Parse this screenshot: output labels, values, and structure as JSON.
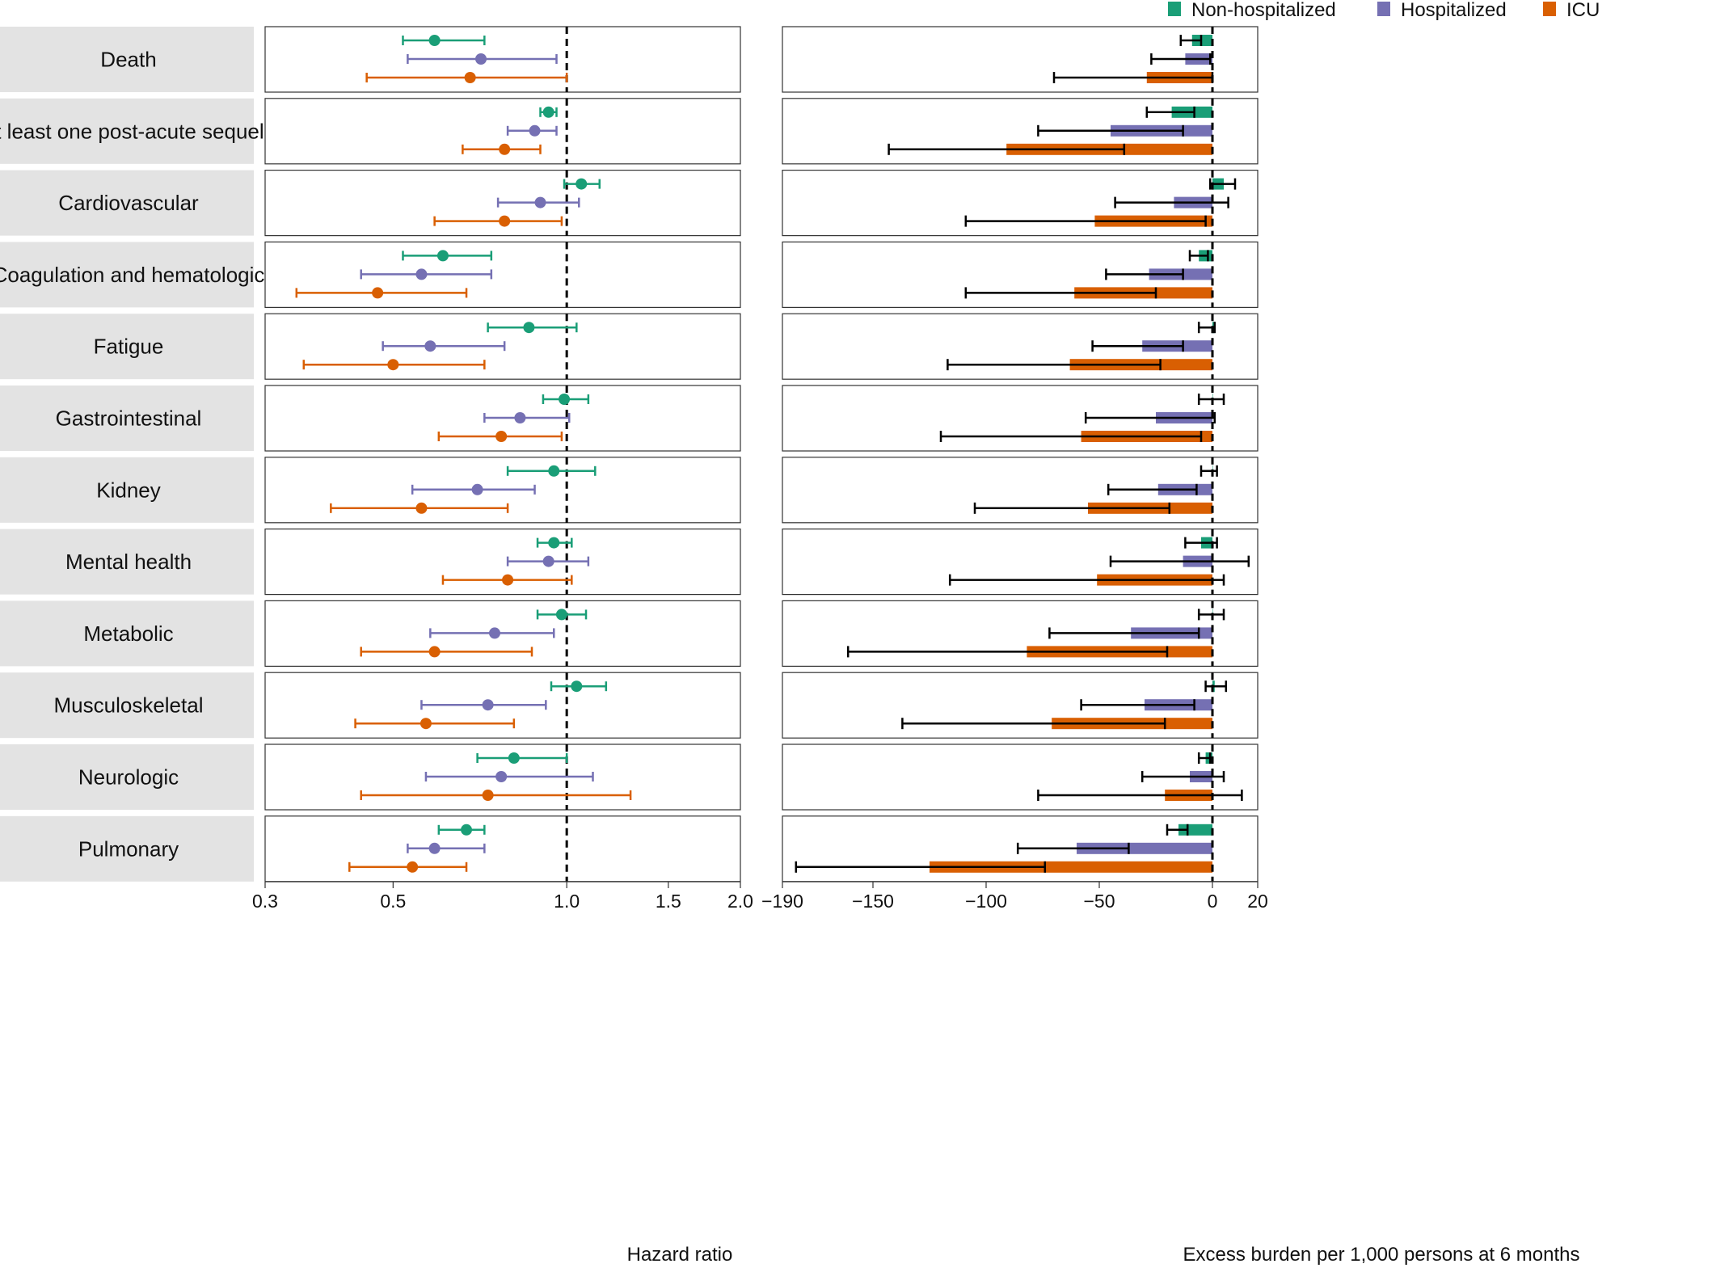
{
  "chart_data": [
    {
      "type": "forest",
      "xlabel": "Hazard ratio",
      "xscale": "log",
      "xlim": [
        0.3,
        2.0
      ],
      "ticks": [
        0.3,
        0.5,
        1.0,
        1.5,
        2.0
      ],
      "tick_labels": [
        "0.3",
        "0.5",
        "1.0",
        "1.5",
        "2.0"
      ],
      "reference_line": 1.0,
      "categories": [
        "Death",
        "At least one post-acute sequela",
        "Cardiovascular",
        "Coagulation and hematologic",
        "Fatigue",
        "Gastrointestinal",
        "Kidney",
        "Mental health",
        "Metabolic",
        "Musculoskeletal",
        "Neurologic",
        "Pulmonary"
      ],
      "series": [
        {
          "name": "Non-hospitalized",
          "color": "#1a9e77",
          "estimate": [
            0.59,
            0.93,
            1.06,
            0.61,
            0.86,
            0.99,
            0.95,
            0.95,
            0.98,
            1.04,
            0.81,
            0.67
          ],
          "lower": [
            0.52,
            0.9,
            0.99,
            0.52,
            0.73,
            0.91,
            0.79,
            0.89,
            0.89,
            0.94,
            0.7,
            0.6
          ],
          "upper": [
            0.72,
            0.96,
            1.14,
            0.74,
            1.04,
            1.09,
            1.12,
            1.02,
            1.08,
            1.17,
            1.0,
            0.72
          ]
        },
        {
          "name": "Hospitalized",
          "color": "#7570b3",
          "estimate": [
            0.71,
            0.88,
            0.9,
            0.56,
            0.58,
            0.83,
            0.7,
            0.93,
            0.75,
            0.73,
            0.77,
            0.59
          ],
          "lower": [
            0.53,
            0.79,
            0.76,
            0.44,
            0.48,
            0.72,
            0.54,
            0.79,
            0.58,
            0.56,
            0.57,
            0.53
          ],
          "upper": [
            0.96,
            0.96,
            1.05,
            0.74,
            0.78,
            1.01,
            0.88,
            1.09,
            0.95,
            0.92,
            1.11,
            0.72
          ]
        },
        {
          "name": "ICU",
          "color": "#d95f02",
          "estimate": [
            0.68,
            0.78,
            0.78,
            0.47,
            0.5,
            0.77,
            0.56,
            0.79,
            0.59,
            0.57,
            0.73,
            0.54
          ],
          "lower": [
            0.45,
            0.66,
            0.59,
            0.34,
            0.35,
            0.6,
            0.39,
            0.61,
            0.44,
            0.43,
            0.44,
            0.42
          ],
          "upper": [
            1.0,
            0.9,
            0.98,
            0.67,
            0.72,
            0.98,
            0.79,
            1.02,
            0.87,
            0.81,
            1.29,
            0.67
          ]
        }
      ]
    },
    {
      "type": "bar",
      "orientation": "horizontal",
      "xlabel": "Excess burden per 1,000 persons at 6 months",
      "xlim": [
        -190,
        20
      ],
      "ticks": [
        -190,
        -150,
        -100,
        -50,
        0,
        20
      ],
      "tick_labels": [
        "−190",
        "−150",
        "−100",
        "−50",
        "0",
        "20"
      ],
      "reference_line": 0,
      "categories": [
        "Death",
        "At least one post-acute sequela",
        "Cardiovascular",
        "Coagulation and hematologic",
        "Fatigue",
        "Gastrointestinal",
        "Kidney",
        "Mental health",
        "Metabolic",
        "Musculoskeletal",
        "Neurologic",
        "Pulmonary"
      ],
      "series": [
        {
          "name": "Non-hospitalized",
          "color": "#1a9e77",
          "values": [
            -9,
            -18,
            5,
            -6,
            1,
            0,
            0,
            -5,
            0,
            1,
            -3,
            -15
          ],
          "lower": [
            -14,
            -29,
            -1,
            -10,
            -6,
            -6,
            -5,
            -12,
            -6,
            -3,
            -6,
            -20
          ],
          "upper": [
            -5,
            -8,
            10,
            -2,
            1,
            5,
            2,
            2,
            5,
            6,
            -1,
            -11
          ]
        },
        {
          "name": "Hospitalized",
          "color": "#7570b3",
          "values": [
            -12,
            -45,
            -17,
            -28,
            -31,
            -25,
            -24,
            -13,
            -36,
            -30,
            -10,
            -60
          ],
          "lower": [
            -27,
            -77,
            -43,
            -47,
            -53,
            -56,
            -46,
            -45,
            -72,
            -58,
            -31,
            -86
          ],
          "upper": [
            -1,
            -13,
            7,
            -13,
            -13,
            1,
            -7,
            16,
            -6,
            -8,
            5,
            -37
          ]
        },
        {
          "name": "ICU",
          "color": "#d95f02",
          "values": [
            -29,
            -91,
            -52,
            -61,
            -63,
            -58,
            -55,
            -51,
            -82,
            -71,
            -21,
            -125
          ],
          "lower": [
            -70,
            -143,
            -109,
            -109,
            -117,
            -120,
            -105,
            -116,
            -161,
            -137,
            -77,
            -184
          ],
          "upper": [
            0,
            -39,
            -3,
            -25,
            -23,
            -5,
            -19,
            5,
            -20,
            -21,
            13,
            -74
          ]
        }
      ]
    }
  ],
  "legend": [
    {
      "label": "Non-hospitalized",
      "color": "#1a9e77"
    },
    {
      "label": "Hospitalized",
      "color": "#7570b3"
    },
    {
      "label": "ICU",
      "color": "#d95f02"
    }
  ]
}
